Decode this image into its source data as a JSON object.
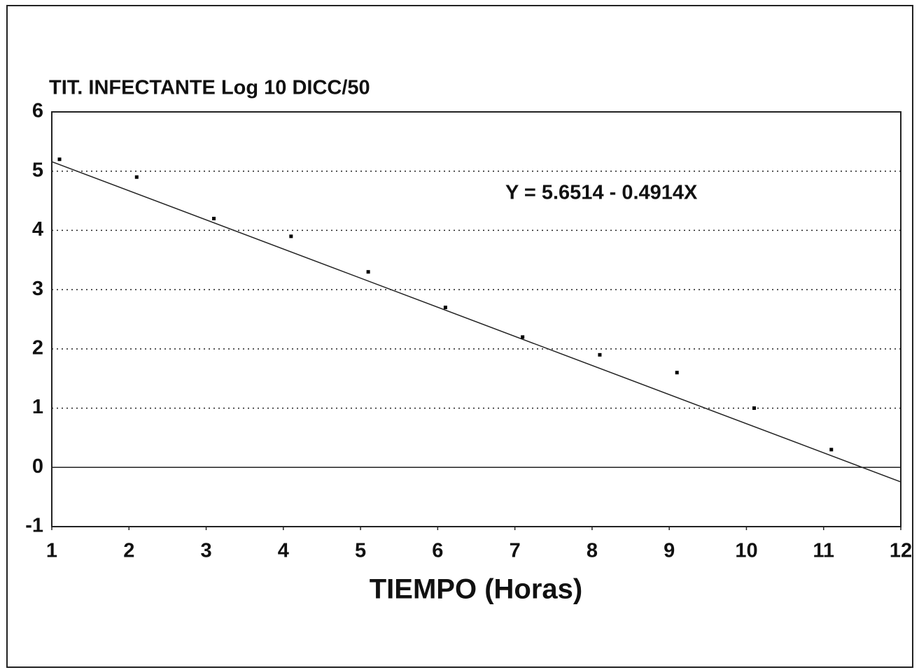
{
  "chart_data": {
    "type": "scatter",
    "title": "TIT. INFECTANTE Log 10 DICC/50",
    "x_label": "TIEMPO (Horas)",
    "x": [
      1.1,
      2.1,
      3.1,
      4.1,
      5.1,
      6.1,
      7.1,
      8.1,
      9.1,
      10.1,
      11.1
    ],
    "values": [
      5.2,
      4.9,
      4.2,
      3.9,
      3.3,
      2.7,
      2.2,
      1.9,
      1.6,
      1.0,
      0.3
    ],
    "color": "#000000",
    "trendline": {
      "intercept": 5.6514,
      "slope": -0.4914,
      "label": "Y = 5.6514 - 0.4914X"
    },
    "xlim": [
      1,
      12
    ],
    "xticks": [
      1,
      2,
      3,
      4,
      5,
      6,
      7,
      8,
      9,
      10,
      11,
      12
    ],
    "ylim": [
      -1,
      6
    ],
    "yticks": [
      -1,
      0,
      1,
      2,
      3,
      4,
      5,
      6
    ],
    "grid": true
  }
}
